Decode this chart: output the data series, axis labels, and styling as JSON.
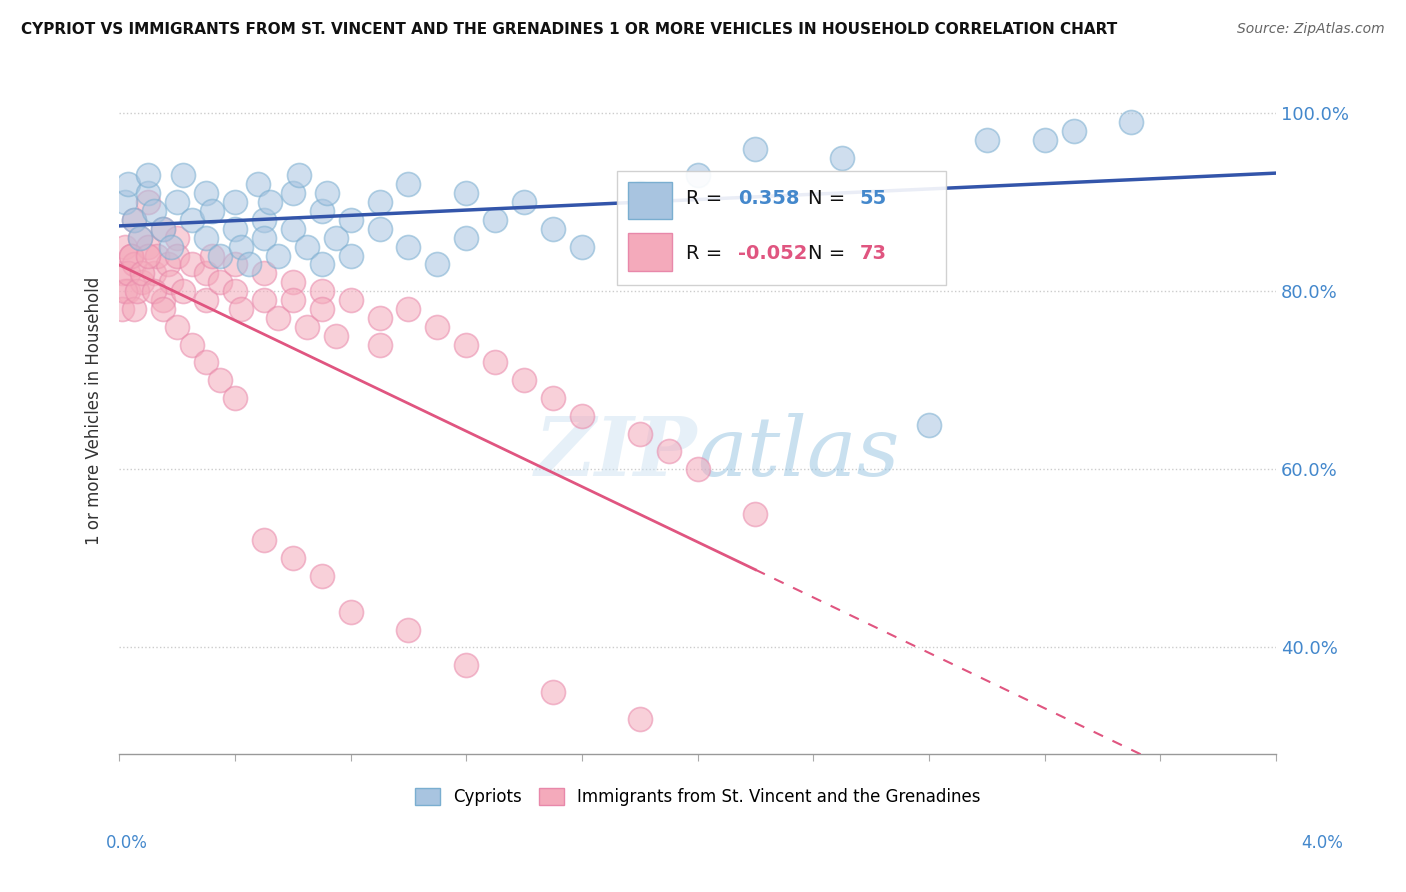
{
  "title": "CYPRIOT VS IMMIGRANTS FROM ST. VINCENT AND THE GRENADINES 1 OR MORE VEHICLES IN HOUSEHOLD CORRELATION CHART",
  "source": "Source: ZipAtlas.com",
  "ylabel": "1 or more Vehicles in Household",
  "legend_cypriot": "Cypriots",
  "legend_svg": "Immigrants from St. Vincent and the Grenadines",
  "R_cypriot": 0.358,
  "N_cypriot": 55,
  "R_svg": -0.052,
  "N_svg": 73,
  "blue_fill": "#A8C4E0",
  "blue_edge": "#7AAED0",
  "pink_fill": "#F4AABB",
  "pink_edge": "#E888AA",
  "blue_line_color": "#3355AA",
  "pink_line_color": "#E05580",
  "background_color": "#ffffff",
  "grid_color": "#cccccc",
  "xlim": [
    0.0,
    0.04
  ],
  "ylim": [
    0.28,
    1.05
  ],
  "cypriot_x": [
    0.0002,
    0.0003,
    0.0005,
    0.0007,
    0.001,
    0.001,
    0.0012,
    0.0015,
    0.0018,
    0.002,
    0.0022,
    0.0025,
    0.003,
    0.003,
    0.0032,
    0.0035,
    0.004,
    0.004,
    0.0042,
    0.0045,
    0.0048,
    0.005,
    0.005,
    0.0052,
    0.0055,
    0.006,
    0.006,
    0.0062,
    0.0065,
    0.007,
    0.007,
    0.0072,
    0.0075,
    0.008,
    0.008,
    0.009,
    0.009,
    0.01,
    0.01,
    0.011,
    0.012,
    0.012,
    0.013,
    0.014,
    0.015,
    0.016,
    0.018,
    0.02,
    0.022,
    0.025,
    0.028,
    0.03,
    0.032,
    0.033,
    0.035
  ],
  "cypriot_y": [
    0.9,
    0.92,
    0.88,
    0.86,
    0.91,
    0.93,
    0.89,
    0.87,
    0.85,
    0.9,
    0.93,
    0.88,
    0.91,
    0.86,
    0.89,
    0.84,
    0.9,
    0.87,
    0.85,
    0.83,
    0.92,
    0.88,
    0.86,
    0.9,
    0.84,
    0.91,
    0.87,
    0.93,
    0.85,
    0.89,
    0.83,
    0.91,
    0.86,
    0.88,
    0.84,
    0.9,
    0.87,
    0.85,
    0.92,
    0.83,
    0.91,
    0.86,
    0.88,
    0.9,
    0.87,
    0.85,
    0.91,
    0.93,
    0.96,
    0.95,
    0.65,
    0.97,
    0.97,
    0.98,
    0.99
  ],
  "svg_x": [
    0.0001,
    0.0002,
    0.0003,
    0.0004,
    0.0005,
    0.0005,
    0.0007,
    0.0008,
    0.001,
    0.001,
    0.0012,
    0.0013,
    0.0015,
    0.0015,
    0.0017,
    0.0018,
    0.002,
    0.002,
    0.0022,
    0.0025,
    0.003,
    0.003,
    0.0032,
    0.0035,
    0.004,
    0.004,
    0.0042,
    0.005,
    0.005,
    0.0055,
    0.006,
    0.006,
    0.0065,
    0.007,
    0.007,
    0.0075,
    0.008,
    0.009,
    0.009,
    0.01,
    0.011,
    0.012,
    0.013,
    0.014,
    0.015,
    0.016,
    0.018,
    0.019,
    0.02,
    0.022,
    0.0001,
    0.0002,
    0.0003,
    0.0004,
    0.0005,
    0.0006,
    0.0008,
    0.001,
    0.0012,
    0.0015,
    0.002,
    0.0025,
    0.003,
    0.0035,
    0.004,
    0.005,
    0.006,
    0.007,
    0.008,
    0.01,
    0.012,
    0.015,
    0.018
  ],
  "svg_y": [
    0.82,
    0.85,
    0.8,
    0.84,
    0.88,
    0.83,
    0.86,
    0.81,
    0.85,
    0.9,
    0.82,
    0.84,
    0.79,
    0.87,
    0.83,
    0.81,
    0.86,
    0.84,
    0.8,
    0.83,
    0.82,
    0.79,
    0.84,
    0.81,
    0.83,
    0.8,
    0.78,
    0.82,
    0.79,
    0.77,
    0.81,
    0.79,
    0.76,
    0.8,
    0.78,
    0.75,
    0.79,
    0.77,
    0.74,
    0.78,
    0.76,
    0.74,
    0.72,
    0.7,
    0.68,
    0.66,
    0.64,
    0.62,
    0.6,
    0.55,
    0.78,
    0.8,
    0.82,
    0.84,
    0.78,
    0.8,
    0.82,
    0.84,
    0.8,
    0.78,
    0.76,
    0.74,
    0.72,
    0.7,
    0.68,
    0.52,
    0.5,
    0.48,
    0.44,
    0.42,
    0.38,
    0.35,
    0.32
  ]
}
